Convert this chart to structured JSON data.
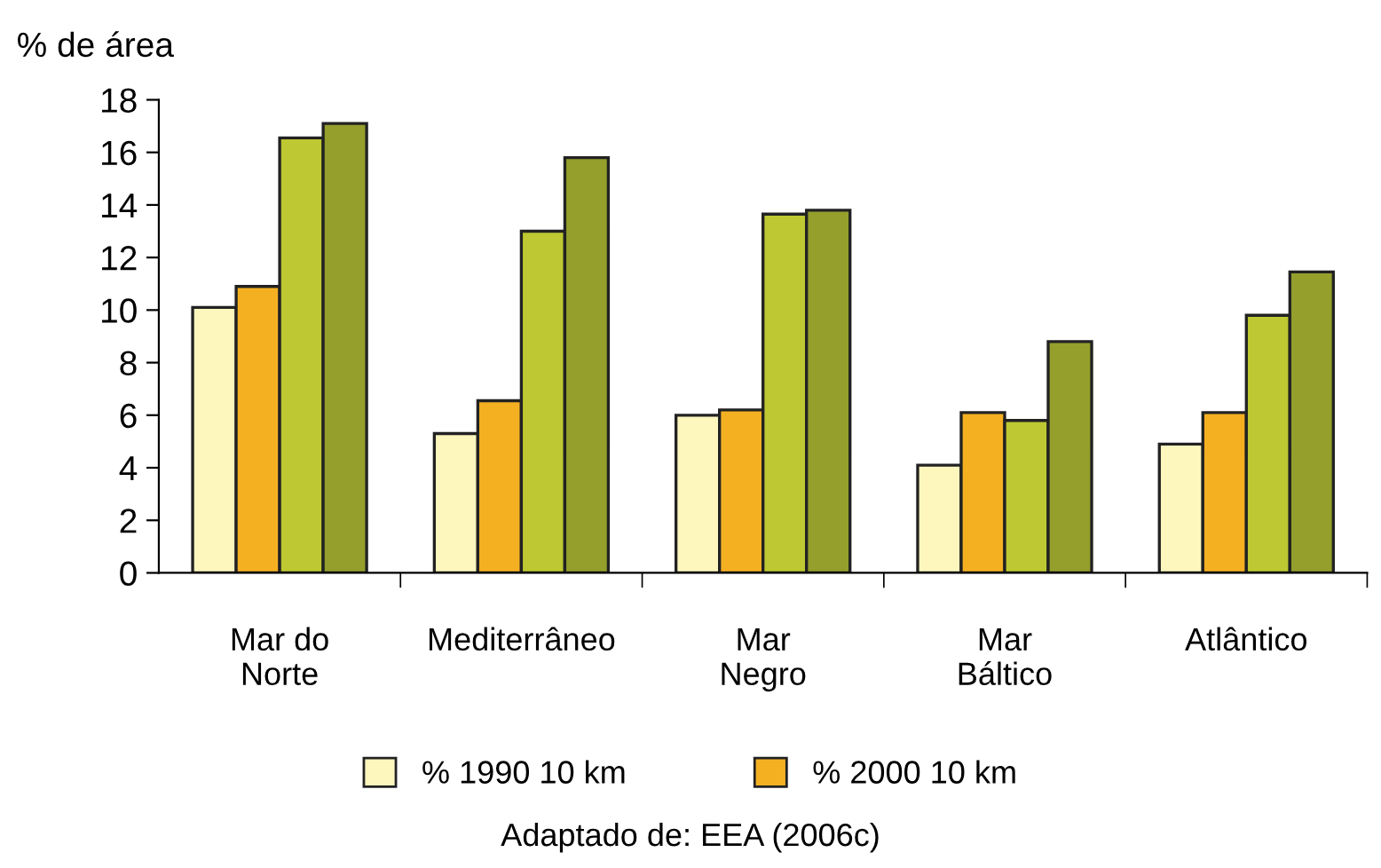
{
  "chart_data": {
    "type": "bar",
    "ylabel": "% de área",
    "categories": [
      "Mar do\nNorte",
      "Mediterrâneo",
      "Mar\nNegro",
      "Mar\nBáltico",
      "Atlântico"
    ],
    "series": [
      {
        "name": "% 1990 10 km",
        "color": "#fdf6bd",
        "values": [
          10.1,
          5.3,
          6.0,
          4.1,
          4.9
        ]
      },
      {
        "name": "% 2000 10 km",
        "color": "#f5b022",
        "values": [
          10.9,
          6.55,
          6.2,
          6.1,
          6.1
        ]
      },
      {
        "color": "#bec832",
        "values": [
          16.55,
          13.0,
          13.65,
          5.8,
          9.8
        ]
      },
      {
        "color": "#949f2c",
        "values": [
          17.1,
          15.8,
          13.8,
          8.8,
          11.45
        ]
      }
    ],
    "ylim": [
      0,
      18
    ],
    "yticks": [
      0,
      2,
      4,
      6,
      8,
      10,
      12,
      14,
      16,
      18
    ],
    "grid": false,
    "legend": "bottom",
    "annotations": [
      "Adaptado de: EEA (2006c)"
    ]
  }
}
